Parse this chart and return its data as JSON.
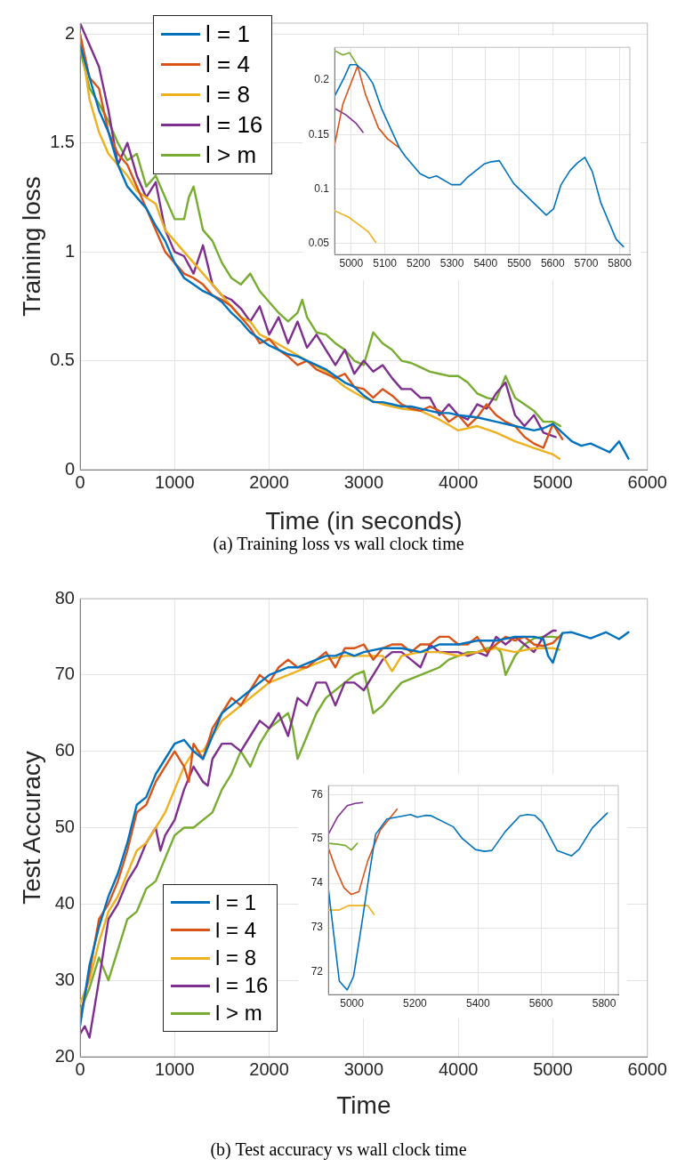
{
  "chart_data": [
    {
      "type": "line",
      "xlabel": "Time (in seconds)",
      "ylabel": "Training loss",
      "annotations": [
        "(a) Training loss vs wall clock time"
      ],
      "xlim": [
        0,
        6000
      ],
      "ylim": [
        0,
        2.05
      ],
      "xticks": [
        0,
        1000,
        2000,
        3000,
        4000,
        5000,
        6000
      ],
      "yticks": [
        0,
        0.5,
        1,
        1.5,
        2
      ],
      "grid": true,
      "legend": "top left",
      "line_style": "solid",
      "series": [
        {
          "name": "l = 1",
          "color": "#0072bd",
          "x": [
            0,
            100,
            200,
            300,
            400,
            500,
            600,
            700,
            800,
            900,
            1000,
            1100,
            1200,
            1300,
            1400,
            1500,
            1600,
            1700,
            1800,
            1900,
            2000,
            2100,
            2200,
            2300,
            2400,
            2500,
            2600,
            2700,
            2800,
            2900,
            3000,
            3100,
            3200,
            3300,
            3400,
            3500,
            3600,
            3700,
            3800,
            3900,
            4000,
            4200,
            4400,
            4600,
            4800,
            4900,
            5000,
            5100,
            5200,
            5300,
            5400,
            5500,
            5600,
            5700,
            5800
          ],
          "values": [
            1.95,
            1.8,
            1.65,
            1.55,
            1.4,
            1.3,
            1.25,
            1.2,
            1.12,
            1.05,
            0.95,
            0.88,
            0.85,
            0.82,
            0.8,
            0.77,
            0.72,
            0.68,
            0.63,
            0.6,
            0.57,
            0.55,
            0.53,
            0.52,
            0.5,
            0.48,
            0.46,
            0.43,
            0.4,
            0.38,
            0.34,
            0.31,
            0.31,
            0.3,
            0.29,
            0.29,
            0.28,
            0.27,
            0.26,
            0.26,
            0.25,
            0.24,
            0.22,
            0.2,
            0.18,
            0.19,
            0.21,
            0.17,
            0.13,
            0.11,
            0.12,
            0.1,
            0.08,
            0.13,
            0.05
          ]
        },
        {
          "name": "l = 4",
          "color": "#d95319",
          "x": [
            0,
            100,
            200,
            300,
            400,
            500,
            600,
            700,
            800,
            900,
            1000,
            1100,
            1200,
            1300,
            1400,
            1500,
            1600,
            1700,
            1800,
            1900,
            2000,
            2100,
            2200,
            2300,
            2400,
            2500,
            2600,
            2700,
            2800,
            2900,
            3000,
            3100,
            3200,
            3300,
            3400,
            3500,
            3600,
            3700,
            3800,
            3900,
            4000,
            4100,
            4200,
            4300,
            4400,
            4500,
            4600,
            4700,
            4800,
            4900,
            5000,
            5100
          ],
          "values": [
            2.0,
            1.8,
            1.75,
            1.55,
            1.45,
            1.4,
            1.3,
            1.2,
            1.1,
            1.0,
            0.95,
            0.9,
            0.88,
            0.85,
            0.8,
            0.78,
            0.75,
            0.7,
            0.65,
            0.58,
            0.6,
            0.55,
            0.52,
            0.48,
            0.5,
            0.46,
            0.44,
            0.42,
            0.44,
            0.38,
            0.37,
            0.33,
            0.37,
            0.34,
            0.3,
            0.28,
            0.27,
            0.29,
            0.27,
            0.22,
            0.25,
            0.2,
            0.24,
            0.3,
            0.25,
            0.22,
            0.2,
            0.15,
            0.12,
            0.1,
            0.21,
            0.14
          ]
        },
        {
          "name": "l = 8",
          "color": "#edb120",
          "x": [
            0,
            100,
            200,
            300,
            400,
            500,
            600,
            700,
            800,
            900,
            1000,
            1100,
            1200,
            1300,
            1400,
            1500,
            1600,
            1700,
            1800,
            1900,
            2000,
            2200,
            2400,
            2600,
            2800,
            3000,
            3200,
            3300,
            3400,
            3600,
            3800,
            4000,
            4200,
            4400,
            4600,
            4800,
            5000,
            5070
          ],
          "values": [
            2.0,
            1.7,
            1.55,
            1.45,
            1.4,
            1.35,
            1.28,
            1.25,
            1.22,
            1.1,
            1.05,
            1.0,
            0.95,
            0.9,
            0.85,
            0.8,
            0.75,
            0.7,
            0.68,
            0.62,
            0.6,
            0.55,
            0.5,
            0.45,
            0.38,
            0.33,
            0.3,
            0.29,
            0.28,
            0.27,
            0.23,
            0.18,
            0.2,
            0.17,
            0.13,
            0.1,
            0.07,
            0.05
          ]
        },
        {
          "name": "l = 16",
          "color": "#7e2f8e",
          "x": [
            0,
            100,
            200,
            300,
            400,
            500,
            600,
            700,
            800,
            900,
            1000,
            1100,
            1200,
            1300,
            1400,
            1500,
            1600,
            1700,
            1800,
            1900,
            2000,
            2100,
            2200,
            2300,
            2400,
            2500,
            2600,
            2700,
            2800,
            2900,
            3000,
            3100,
            3200,
            3300,
            3400,
            3500,
            3600,
            3700,
            3800,
            3900,
            4000,
            4100,
            4200,
            4300,
            4400,
            4500,
            4600,
            4700,
            4800,
            4900,
            5030
          ],
          "values": [
            2.05,
            1.95,
            1.85,
            1.65,
            1.4,
            1.5,
            1.35,
            1.25,
            1.32,
            1.1,
            1.0,
            0.98,
            0.9,
            1.03,
            0.85,
            0.8,
            0.78,
            0.74,
            0.68,
            0.75,
            0.62,
            0.7,
            0.58,
            0.68,
            0.56,
            0.62,
            0.55,
            0.48,
            0.55,
            0.44,
            0.5,
            0.45,
            0.48,
            0.42,
            0.37,
            0.37,
            0.33,
            0.33,
            0.25,
            0.3,
            0.25,
            0.23,
            0.3,
            0.28,
            0.35,
            0.4,
            0.25,
            0.2,
            0.25,
            0.17,
            0.15
          ]
        },
        {
          "name": "l > m",
          "color": "#77ac30",
          "x": [
            0,
            100,
            200,
            300,
            400,
            500,
            600,
            700,
            800,
            900,
            1000,
            1100,
            1150,
            1200,
            1300,
            1400,
            1500,
            1600,
            1700,
            1800,
            1900,
            2000,
            2100,
            2200,
            2300,
            2350,
            2400,
            2500,
            2600,
            2700,
            2800,
            2900,
            3000,
            3100,
            3200,
            3300,
            3400,
            3500,
            3600,
            3700,
            3800,
            3900,
            4000,
            4100,
            4200,
            4300,
            4400,
            4500,
            4600,
            4700,
            4800,
            4900,
            5000,
            5080
          ],
          "values": [
            1.93,
            1.75,
            1.68,
            1.6,
            1.5,
            1.42,
            1.45,
            1.3,
            1.35,
            1.25,
            1.15,
            1.15,
            1.25,
            1.3,
            1.1,
            1.05,
            0.95,
            0.88,
            0.85,
            0.9,
            0.82,
            0.77,
            0.72,
            0.68,
            0.72,
            0.78,
            0.7,
            0.63,
            0.62,
            0.58,
            0.55,
            0.5,
            0.48,
            0.63,
            0.58,
            0.55,
            0.5,
            0.49,
            0.47,
            0.45,
            0.44,
            0.43,
            0.43,
            0.4,
            0.35,
            0.33,
            0.32,
            0.43,
            0.33,
            0.3,
            0.27,
            0.22,
            0.22,
            0.2
          ]
        }
      ]
    },
    {
      "type": "line",
      "xlim": [
        4950,
        5830
      ],
      "ylim": [
        0.04,
        0.23
      ],
      "xticks": [
        5000,
        5100,
        5200,
        5300,
        5400,
        5500,
        5600,
        5700,
        5800
      ],
      "yticks": [
        0.05,
        0.1,
        0.15,
        0.2
      ],
      "grid": true,
      "line_style": "solid",
      "series": [
        {
          "color": "#0072bd",
          "x": [
            4950,
            4977,
            4996,
            5015,
            5042,
            5064,
            5090,
            5143,
            5161,
            5205,
            5232,
            5254,
            5299,
            5325,
            5347,
            5396,
            5418,
            5441,
            5484,
            5581,
            5603,
            5625,
            5652,
            5674,
            5696,
            5718,
            5744,
            5789,
            5811
          ],
          "values": [
            0.185,
            0.201,
            0.214,
            0.214,
            0.207,
            0.197,
            0.174,
            0.138,
            0.13,
            0.114,
            0.11,
            0.112,
            0.104,
            0.104,
            0.111,
            0.123,
            0.125,
            0.126,
            0.105,
            0.076,
            0.082,
            0.104,
            0.117,
            0.124,
            0.129,
            0.116,
            0.087,
            0.054,
            0.047
          ]
        },
        {
          "color": "#d95319",
          "x": [
            4950,
            4975,
            5019,
            5042,
            5081,
            5108,
            5142
          ],
          "values": [
            0.14,
            0.178,
            0.213,
            0.187,
            0.156,
            0.146,
            0.138
          ]
        },
        {
          "color": "#edb120",
          "x": [
            4950,
            4993,
            5050,
            5073
          ],
          "values": [
            0.08,
            0.074,
            0.061,
            0.051
          ]
        },
        {
          "color": "#7e2f8e",
          "x": [
            4950,
            4984,
            5015,
            5035
          ],
          "values": [
            0.174,
            0.168,
            0.16,
            0.152
          ]
        },
        {
          "color": "#77ac30",
          "x": [
            4950,
            4975,
            4995,
            5019
          ],
          "values": [
            0.227,
            0.223,
            0.225,
            0.213
          ]
        }
      ]
    },
    {
      "type": "line",
      "xlabel": "Time",
      "ylabel": "Test Accuracy",
      "annotations": [
        "(b) Test accuracy vs wall clock time"
      ],
      "xlim": [
        0,
        6000
      ],
      "ylim": [
        20,
        80
      ],
      "xticks": [
        0,
        1000,
        2000,
        3000,
        4000,
        5000,
        6000
      ],
      "yticks": [
        20,
        30,
        40,
        50,
        60,
        70,
        80
      ],
      "grid": true,
      "legend": "bottom left",
      "line_style": "solid",
      "series": [
        {
          "name": "l = 1",
          "color": "#0072bd",
          "x": [
            0,
            100,
            200,
            300,
            400,
            500,
            600,
            700,
            800,
            900,
            1000,
            1100,
            1200,
            1300,
            1400,
            1500,
            1600,
            1700,
            1800,
            1900,
            2000,
            2100,
            2200,
            2300,
            2400,
            2500,
            2600,
            2700,
            2800,
            2900,
            3000,
            3200,
            3400,
            3600,
            3800,
            4000,
            4200,
            4400,
            4600,
            4800,
            4900,
            4950,
            5000,
            5100,
            5200,
            5400,
            5560,
            5700,
            5800
          ],
          "values": [
            24,
            32,
            37,
            41,
            44,
            48,
            53,
            54,
            57,
            59,
            61,
            61.5,
            60,
            59,
            62,
            65,
            66,
            67,
            68,
            69,
            70,
            70.5,
            71,
            71,
            71.5,
            72,
            72.5,
            72.5,
            73,
            72.5,
            73,
            73.5,
            73.5,
            73,
            74,
            74,
            74.5,
            74.5,
            75,
            75,
            74.7,
            72.5,
            71.6,
            75.5,
            75.6,
            74.8,
            75.6,
            74.7,
            75.6
          ]
        },
        {
          "name": "l = 4",
          "color": "#d95319",
          "x": [
            0,
            100,
            200,
            300,
            400,
            500,
            600,
            700,
            800,
            900,
            1000,
            1100,
            1150,
            1200,
            1300,
            1400,
            1500,
            1600,
            1700,
            1800,
            1900,
            2000,
            2100,
            2200,
            2300,
            2400,
            2500,
            2600,
            2700,
            2800,
            2900,
            3000,
            3100,
            3200,
            3300,
            3400,
            3500,
            3600,
            3700,
            3800,
            3900,
            4000,
            4100,
            4200,
            4300,
            4400,
            4500,
            4600,
            4700,
            4800,
            4900,
            5000,
            5100
          ],
          "values": [
            25,
            31,
            38,
            40,
            43,
            47,
            52,
            53,
            56,
            58,
            60,
            58,
            56,
            61,
            59,
            63,
            65,
            67,
            66,
            68,
            70,
            69,
            71,
            72,
            71,
            71,
            72,
            73,
            71,
            73.5,
            73.5,
            74,
            72,
            73.5,
            74,
            74,
            73,
            74,
            74,
            75,
            75,
            74,
            74,
            75,
            73,
            74,
            75,
            74.5,
            75,
            74,
            73.8,
            74.2,
            75.4
          ]
        },
        {
          "name": "l = 8",
          "color": "#edb120",
          "x": [
            0,
            100,
            200,
            300,
            400,
            500,
            600,
            700,
            800,
            900,
            1000,
            1100,
            1200,
            1300,
            1400,
            1500,
            1600,
            1700,
            1800,
            1900,
            2000,
            2200,
            2400,
            2600,
            2800,
            3000,
            3200,
            3300,
            3400,
            3600,
            3800,
            4000,
            4200,
            4400,
            4600,
            4800,
            5000,
            5070
          ],
          "values": [
            27,
            30,
            35,
            39,
            41,
            44,
            47,
            48,
            50,
            52,
            55,
            58,
            60,
            60,
            62,
            64,
            65,
            66,
            67,
            68,
            69,
            70,
            71,
            72,
            72.5,
            72.5,
            72.5,
            70.5,
            72.5,
            73,
            73,
            72.5,
            73,
            73.5,
            73,
            73.5,
            73.5,
            73.3
          ]
        },
        {
          "name": "l = 16",
          "color": "#7e2f8e",
          "x": [
            0,
            50,
            100,
            200,
            300,
            400,
            500,
            600,
            700,
            800,
            850,
            900,
            1000,
            1100,
            1200,
            1300,
            1350,
            1400,
            1500,
            1600,
            1700,
            1800,
            1900,
            2000,
            2100,
            2200,
            2300,
            2400,
            2500,
            2600,
            2700,
            2800,
            2900,
            3000,
            3100,
            3200,
            3300,
            3400,
            3500,
            3600,
            3700,
            3800,
            3900,
            4000,
            4100,
            4200,
            4300,
            4400,
            4500,
            4600,
            4700,
            4800,
            4900,
            5000,
            5030
          ],
          "values": [
            23,
            24,
            22.5,
            30,
            38,
            40,
            43,
            45,
            48,
            50,
            47,
            49,
            51,
            55,
            58,
            56,
            55.5,
            59,
            61,
            61,
            60,
            62,
            64,
            63,
            65,
            62,
            67,
            66,
            69,
            69,
            66,
            69,
            69,
            68,
            70,
            72,
            73,
            73,
            72,
            71,
            74,
            73,
            73,
            73,
            72.5,
            73,
            72.5,
            75,
            74,
            75,
            74,
            73,
            75,
            75.8,
            75.8
          ]
        },
        {
          "name": "l > m",
          "color": "#77ac30",
          "x": [
            0,
            100,
            200,
            300,
            400,
            500,
            600,
            700,
            800,
            900,
            1000,
            1100,
            1200,
            1300,
            1400,
            1500,
            1600,
            1700,
            1800,
            1900,
            2000,
            2100,
            2200,
            2250,
            2300,
            2400,
            2500,
            2600,
            2700,
            2800,
            2900,
            3000,
            3100,
            3200,
            3300,
            3400,
            3500,
            3600,
            3700,
            3800,
            3900,
            4000,
            4100,
            4200,
            4300,
            4400,
            4450,
            4500,
            4600,
            4700,
            4800,
            4900,
            5000,
            5050
          ],
          "values": [
            26,
            29,
            33,
            30,
            34,
            38,
            39,
            42,
            43,
            46,
            49,
            50,
            50,
            51,
            52,
            55,
            57,
            60,
            58,
            61,
            63,
            64,
            65,
            63,
            59,
            62,
            65,
            67,
            68,
            69,
            70,
            70.5,
            65,
            66,
            67.6,
            69,
            69.5,
            70,
            70.5,
            71,
            72,
            72.5,
            73,
            73,
            73.5,
            73.6,
            73,
            70,
            72.5,
            74,
            74.8,
            75,
            75,
            74.9
          ]
        }
      ]
    },
    {
      "type": "line",
      "xlim": [
        4925,
        5845
      ],
      "ylim": [
        71.5,
        76.2
      ],
      "xticks": [
        5000,
        5200,
        5400,
        5600,
        5800
      ],
      "yticks": [
        72,
        73,
        74,
        75,
        76
      ],
      "grid": true,
      "line_style": "solid",
      "series": [
        {
          "color": "#0072bd",
          "x": [
            4925,
            4960,
            4985,
            5005,
            5025,
            5055,
            5075,
            5111,
            5186,
            5207,
            5233,
            5252,
            5322,
            5350,
            5392,
            5420,
            5444,
            5486,
            5533,
            5557,
            5580,
            5604,
            5651,
            5697,
            5721,
            5763,
            5810
          ],
          "values": [
            73.9,
            71.8,
            71.6,
            71.9,
            72.8,
            74.2,
            75.1,
            75.45,
            75.55,
            75.49,
            75.53,
            75.52,
            75.27,
            75.01,
            74.76,
            74.72,
            74.74,
            75.16,
            75.52,
            75.55,
            75.53,
            75.37,
            74.74,
            74.62,
            74.77,
            75.25,
            75.58
          ]
        },
        {
          "color": "#d95319",
          "x": [
            4925,
            4950,
            4975,
            4998,
            5022,
            5050,
            5090,
            5143
          ],
          "values": [
            74.8,
            74.3,
            73.9,
            73.75,
            73.81,
            74.5,
            75.2,
            75.67
          ]
        },
        {
          "color": "#edb120",
          "x": [
            4925,
            4960,
            4990,
            5020,
            5050,
            5070
          ],
          "values": [
            73.4,
            73.4,
            73.5,
            73.5,
            73.5,
            73.3
          ]
        },
        {
          "color": "#7e2f8e",
          "x": [
            4925,
            4955,
            4985,
            5010,
            5034
          ],
          "values": [
            75.1,
            75.5,
            75.75,
            75.8,
            75.82
          ]
        },
        {
          "color": "#77ac30",
          "x": [
            4925,
            4955,
            4980,
            4998,
            5017
          ],
          "values": [
            74.9,
            74.88,
            74.85,
            74.75,
            74.9
          ]
        }
      ]
    }
  ]
}
